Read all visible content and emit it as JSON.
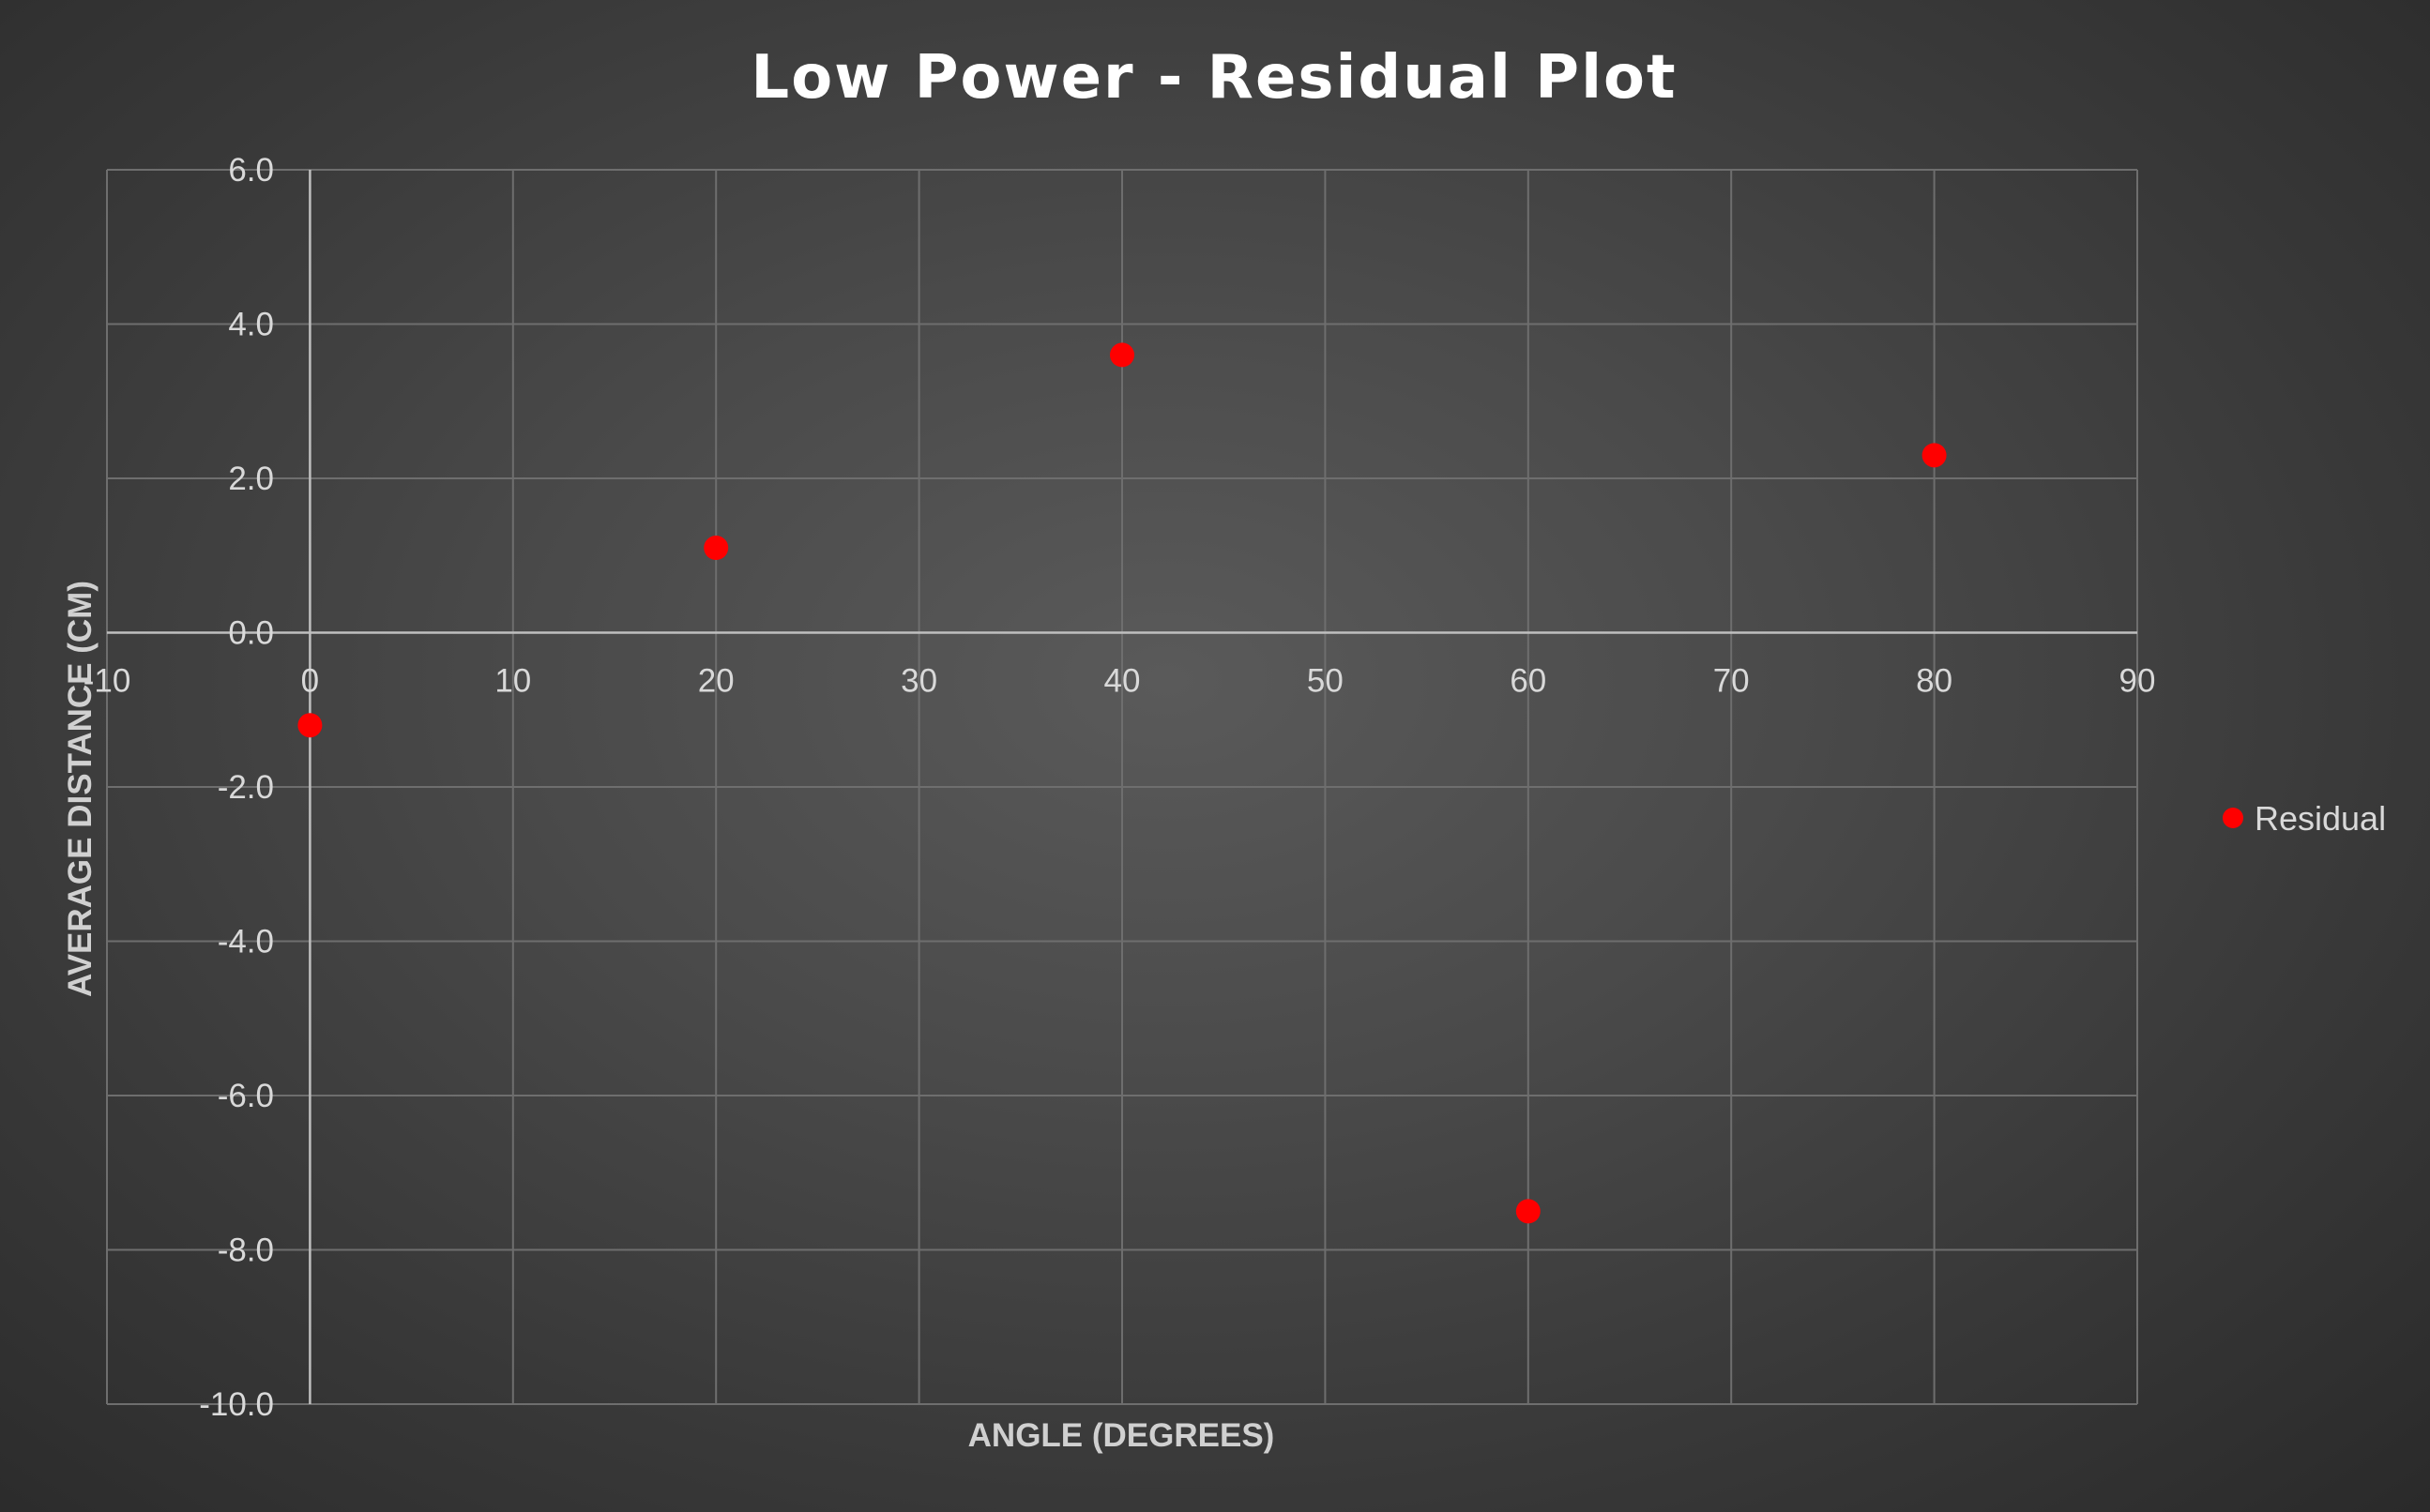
{
  "chart_data": {
    "type": "scatter",
    "title": "Low Power - Residual Plot",
    "xlabel": "ANGLE (DEGREES)",
    "ylabel": "AVERAGE DISTANCE (CM)",
    "xlim": [
      -10,
      90
    ],
    "ylim": [
      -10,
      6
    ],
    "x_ticks": [
      -10,
      0,
      10,
      20,
      30,
      40,
      50,
      60,
      70,
      80,
      90
    ],
    "x_tick_labels": [
      "-10",
      "0",
      "10",
      "20",
      "30",
      "40",
      "50",
      "60",
      "70",
      "80",
      "90"
    ],
    "y_ticks": [
      6,
      4,
      2,
      0,
      -2,
      -4,
      -6,
      -8,
      -10
    ],
    "y_tick_labels": [
      "6.0",
      "4.0",
      "2.0",
      "0.0",
      "-2.0",
      "-4.0",
      "-6.0",
      "-8.0",
      "-10.0"
    ],
    "grid": true,
    "legend_position": "right",
    "series": [
      {
        "name": "Residual",
        "color": "#ff0000",
        "x": [
          0,
          20,
          40,
          60,
          80
        ],
        "y": [
          -1.2,
          1.1,
          3.6,
          -7.5,
          2.3
        ]
      }
    ]
  }
}
